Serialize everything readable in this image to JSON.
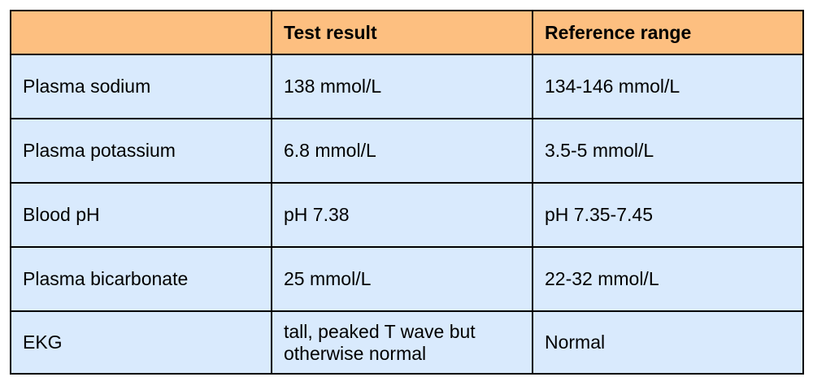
{
  "table": {
    "headers": [
      "",
      "Test result",
      "Reference range"
    ],
    "rows": [
      [
        "Plasma sodium",
        "138 mmol/L",
        "134-146 mmol/L"
      ],
      [
        "Plasma potassium",
        "6.8 mmol/L",
        "3.5-5 mmol/L"
      ],
      [
        "Blood pH",
        "pH 7.38",
        "pH 7.35-7.45"
      ],
      [
        "Plasma bicarbonate",
        "25 mmol/L",
        "22-32 mmol/L"
      ],
      [
        "EKG",
        "tall, peaked T wave but otherwise normal",
        "Normal"
      ]
    ]
  },
  "colors": {
    "header_bg": "#fdbf80",
    "body_bg": "#d9eafd",
    "border": "#000000"
  }
}
